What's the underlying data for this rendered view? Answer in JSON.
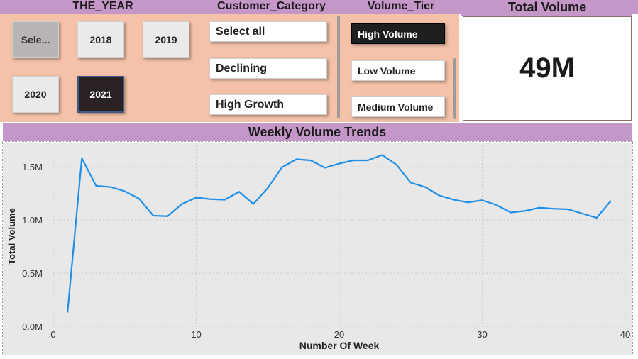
{
  "slicers": {
    "year": {
      "title": "THE_YEAR",
      "items": [
        {
          "label": "Sele...",
          "state": "select-all"
        },
        {
          "label": "2018",
          "state": "normal"
        },
        {
          "label": "2019",
          "state": "normal"
        },
        {
          "label": "2020",
          "state": "normal"
        },
        {
          "label": "2021",
          "state": "selected"
        }
      ]
    },
    "customer_category": {
      "title": "Customer_Category",
      "items": [
        "Select all",
        "Declining",
        "High Growth"
      ]
    },
    "volume_tier": {
      "title": "Volume_Tier",
      "items": [
        {
          "label": "High Volume",
          "state": "selected"
        },
        {
          "label": "Low Volume",
          "state": "normal"
        },
        {
          "label": "Medium Volume",
          "state": "normal"
        }
      ]
    }
  },
  "kpi": {
    "title": "Total Volume",
    "value": "49M"
  },
  "colors": {
    "header_band": "#c596c8",
    "slicer_background": "#f5c2a9",
    "line": "#1f8fe8",
    "plot_background": "#e8e8e8"
  },
  "chart_data": {
    "type": "line",
    "title": "Weekly Volume Trends",
    "xlabel": "Number Of Week",
    "ylabel": "Total Volume",
    "xlim": [
      0,
      40
    ],
    "ylim": [
      0,
      1700000
    ],
    "x_ticks": [
      0,
      10,
      20,
      30,
      40
    ],
    "x_tick_labels": [
      "0",
      "10",
      "20",
      "30",
      "40"
    ],
    "y_ticks": [
      0,
      500000,
      1000000,
      1500000
    ],
    "y_tick_labels": [
      "0.0M",
      "0.5M",
      "1.0M",
      "1.5M"
    ],
    "grid": true,
    "series": [
      {
        "x": [
          1,
          2,
          3,
          4,
          5,
          6,
          7,
          8,
          9,
          10,
          11,
          12,
          13,
          14,
          15,
          16,
          17,
          18,
          19,
          20,
          21,
          22,
          23,
          24,
          25,
          26,
          27,
          28,
          29,
          30,
          31,
          32,
          33,
          34,
          35,
          36,
          37,
          38,
          39
        ],
        "values": [
          130000,
          1580000,
          1320000,
          1310000,
          1270000,
          1200000,
          1040000,
          1035000,
          1150000,
          1210000,
          1195000,
          1190000,
          1265000,
          1150000,
          1300000,
          1495000,
          1570000,
          1560000,
          1490000,
          1530000,
          1560000,
          1560000,
          1610000,
          1520000,
          1350000,
          1310000,
          1230000,
          1190000,
          1165000,
          1185000,
          1140000,
          1070000,
          1085000,
          1115000,
          1105000,
          1100000,
          1060000,
          1020000,
          1180000
        ]
      }
    ]
  }
}
